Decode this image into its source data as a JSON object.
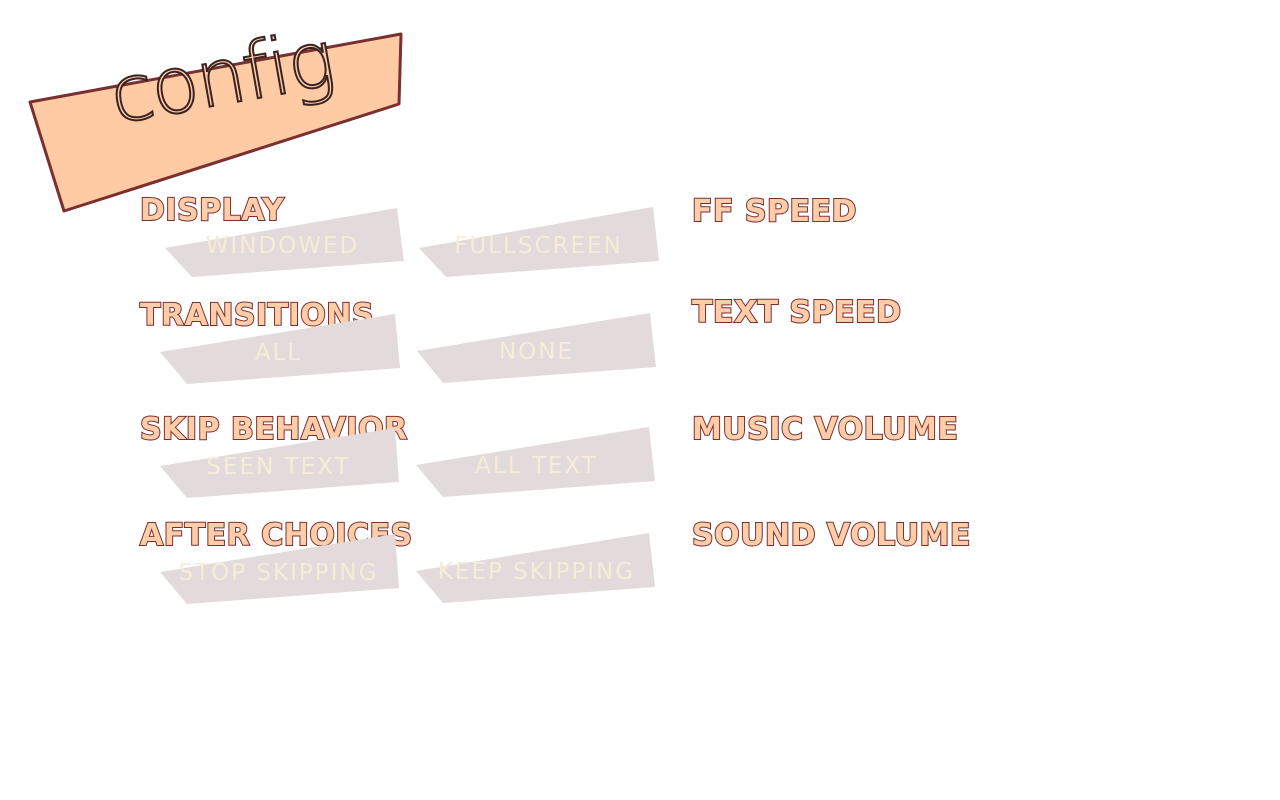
{
  "screen": {
    "title": "config"
  },
  "options": {
    "display": {
      "label": "DISPLAY",
      "choices": [
        "WINDOWED",
        "FULLSCREEN"
      ]
    },
    "transitions": {
      "label": "TRANSITIONS",
      "choices": [
        "ALL",
        "NONE"
      ]
    },
    "skip_behavior": {
      "label": "SKIP BEHAVIOR",
      "choices": [
        "SEEN TEXT",
        "ALL TEXT"
      ]
    },
    "after_choices": {
      "label": "AFTER CHOICES",
      "choices": [
        "STOP SKIPPING",
        "KEEP SKIPPING"
      ]
    }
  },
  "sliders": {
    "ff_speed": {
      "label": "FF SPEED"
    },
    "text_speed": {
      "label": "TEXT SPEED"
    },
    "music_volume": {
      "label": "MUSIC VOLUME"
    },
    "sound_volume": {
      "label": "SOUND VOLUME"
    }
  },
  "colors": {
    "banner_fill": "#ffcba4",
    "banner_stroke": "#7a3030",
    "header_fill": "#ffcda8",
    "header_stroke": "#7a3030",
    "button_fill": "#e3dadb",
    "button_text": "#f6ecd8"
  }
}
